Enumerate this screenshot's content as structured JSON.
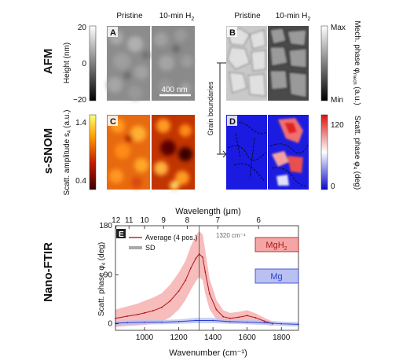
{
  "row_labels": {
    "afm": "AFM",
    "ssnom": "s-SNOM",
    "nano_ftir": "Nano-FTIR"
  },
  "col_titles": {
    "pristine": "Pristine",
    "h2": "10-min H",
    "h2_sub": "2"
  },
  "panels": {
    "A": "A",
    "B": "B",
    "C": "C",
    "D": "D",
    "E": "E"
  },
  "height_bar": {
    "label": "Height (nm)",
    "max": "20",
    "mid": "0",
    "min": "−20"
  },
  "mech_bar": {
    "label_main": "Mech. phase φ",
    "label_sub": "mech",
    "label_end": " (a.u.)",
    "max": "Max",
    "min": "Min"
  },
  "amp_bar": {
    "label_main": "Scatt. amplitude s",
    "label_sub": "4",
    "label_end": " (a.u.)",
    "max": "1.4",
    "min": "0.4"
  },
  "phase_bar": {
    "label_main": "Scatt. phase φ",
    "label_sub": "4",
    "label_end": " (deg)",
    "max": "120",
    "min": "0"
  },
  "scalebar": "400 nm",
  "grain_boundaries": "Grain boundaries",
  "colors": {
    "mgh2_fill": "#f4a6a6",
    "mgh2_line": "#b01515",
    "mg_fill": "#b9c0f2",
    "mg_line": "#2a3fd0",
    "heat_low": "#5a0000",
    "heat_high": "#ffee55",
    "phase_low": "#1010d0",
    "phase_high": "#e01010"
  },
  "chart_data": {
    "type": "line",
    "top_axis_title": "Wavelength (μm)",
    "top_ticks": [
      12,
      11,
      10,
      9,
      8,
      7,
      6
    ],
    "xlabel": "Wavenumber (cm⁻¹)",
    "ylabel_main": "Scatt. phase φ",
    "ylabel_sub": "4",
    "ylabel_end": " (deg)",
    "xlim": [
      830,
      1900
    ],
    "ylim": [
      -12,
      180
    ],
    "x_ticks": [
      1000,
      1200,
      1400,
      1600,
      1800
    ],
    "y_ticks": [
      0,
      90,
      180
    ],
    "legend": {
      "average": "Average (4 pos.)",
      "sd": "SD"
    },
    "annotation": "1320 cm⁻¹",
    "vline_x": 1320,
    "label_mgh2_main": "MgH",
    "label_mgh2_sub": "2",
    "label_mg": "Mg",
    "series": [
      {
        "name": "MgH",
        "x": [
          830,
          900,
          960,
          1000,
          1050,
          1100,
          1150,
          1200,
          1240,
          1270,
          1300,
          1320,
          1340,
          1355,
          1380,
          1420,
          1460,
          1500,
          1550,
          1600,
          1650,
          1700,
          1750
        ],
        "values": [
          10,
          14,
          17,
          20,
          24,
          30,
          42,
          60,
          80,
          102,
          120,
          128,
          122,
          95,
          55,
          26,
          13,
          10,
          12,
          15,
          11,
          5,
          0
        ],
        "sd": [
          16,
          18,
          20,
          22,
          24,
          26,
          30,
          34,
          36,
          40,
          42,
          42,
          42,
          40,
          28,
          18,
          12,
          10,
          10,
          10,
          8,
          6,
          4
        ]
      },
      {
        "name": "Mg",
        "x": [
          830,
          900,
          1000,
          1100,
          1200,
          1300,
          1400,
          1500,
          1600,
          1700,
          1800,
          1900
        ],
        "values": [
          1,
          2,
          3,
          3,
          4,
          6,
          6,
          4,
          3,
          2,
          0,
          -1
        ],
        "sd": [
          4,
          4,
          4,
          4,
          4,
          5,
          5,
          4,
          4,
          4,
          4,
          4
        ]
      }
    ]
  }
}
